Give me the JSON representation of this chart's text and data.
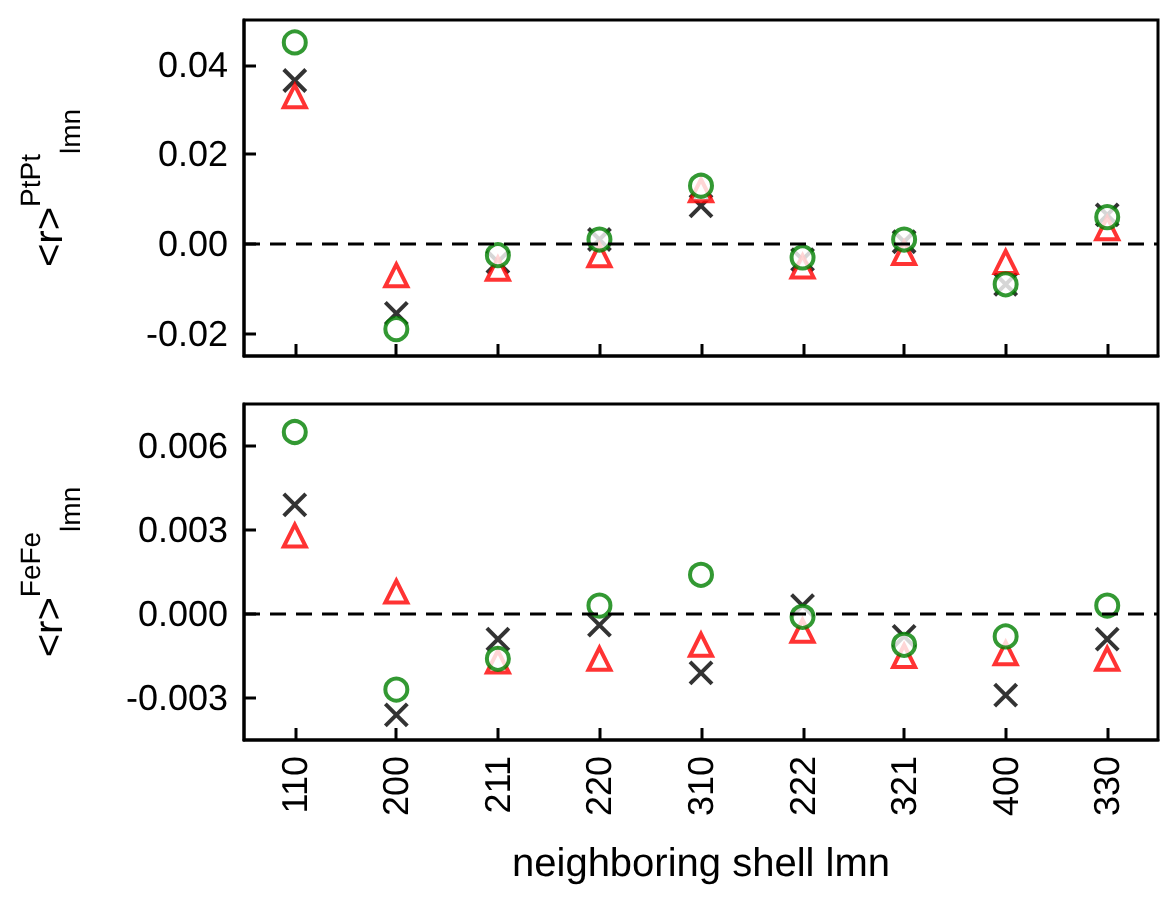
{
  "chart_data": [
    {
      "type": "scatter",
      "ylabel": "<r>$^{PtPt}$$_{lmn}$",
      "categories": [
        "110",
        "200",
        "211",
        "220",
        "310",
        "222",
        "321",
        "400",
        "330"
      ],
      "ylim": [
        -0.025,
        0.05
      ],
      "yticks": [
        -0.02,
        {
          "value": 0,
          "label": "0.00"
        },
        0.02,
        0.04
      ],
      "tick_labels": "y",
      "grid": false,
      "series": [
        {
          "color": "#000000",
          "marker": "cross",
          "values": [
            0.0365,
            -0.0155,
            -0.004,
            0.001,
            0.0085,
            -0.0035,
            0.0005,
            -0.009,
            0.0065
          ]
        },
        {
          "color": "#ff0000",
          "marker": "triangle",
          "values": [
            0.033,
            -0.007,
            -0.0055,
            -0.0025,
            0.012,
            -0.005,
            -0.002,
            -0.004,
            0.0035
          ]
        },
        {
          "color": "#008000",
          "marker": "circle",
          "values": [
            0.045,
            -0.019,
            -0.0025,
            0.001,
            0.013,
            -0.003,
            0.001,
            -0.009,
            0.006
          ]
        }
      ],
      "ref_lines": [
        {
          "axis": "y",
          "value": 0,
          "line_style": "dashed",
          "color": "#000000"
        }
      ]
    },
    {
      "type": "scatter",
      "xlabel": "neighboring shell lmn",
      "ylabel": "<r>$^{FeFe}$$_{lmn}$",
      "categories": [
        "110",
        "200",
        "211",
        "220",
        "310",
        "222",
        "321",
        "400",
        "330"
      ],
      "ylim": [
        -0.0045,
        0.0075
      ],
      "yticks": [
        -0.003,
        {
          "value": 0,
          "label": "0.000"
        },
        0.003,
        0.006
      ],
      "grid": false,
      "series": [
        {
          "color": "#000000",
          "marker": "cross",
          "values": [
            0.0039,
            -0.0036,
            -0.0009,
            -0.0004,
            -0.0021,
            0.0003,
            -0.0008,
            -0.0029,
            -0.0009
          ]
        },
        {
          "color": "#ff0000",
          "marker": "triangle",
          "values": [
            0.0028,
            0.0008,
            -0.0017,
            -0.0016,
            -0.0011,
            -0.0006,
            -0.0015,
            -0.0014,
            -0.0016
          ]
        },
        {
          "color": "#008000",
          "marker": "circle",
          "values": [
            0.0065,
            -0.0027,
            -0.0016,
            0.0003,
            0.0014,
            -0.0001,
            -0.0011,
            -0.0008,
            0.0003
          ]
        }
      ],
      "ref_lines": [
        {
          "axis": "y",
          "value": 0,
          "line_style": "dashed",
          "color": "#000000"
        }
      ]
    }
  ]
}
